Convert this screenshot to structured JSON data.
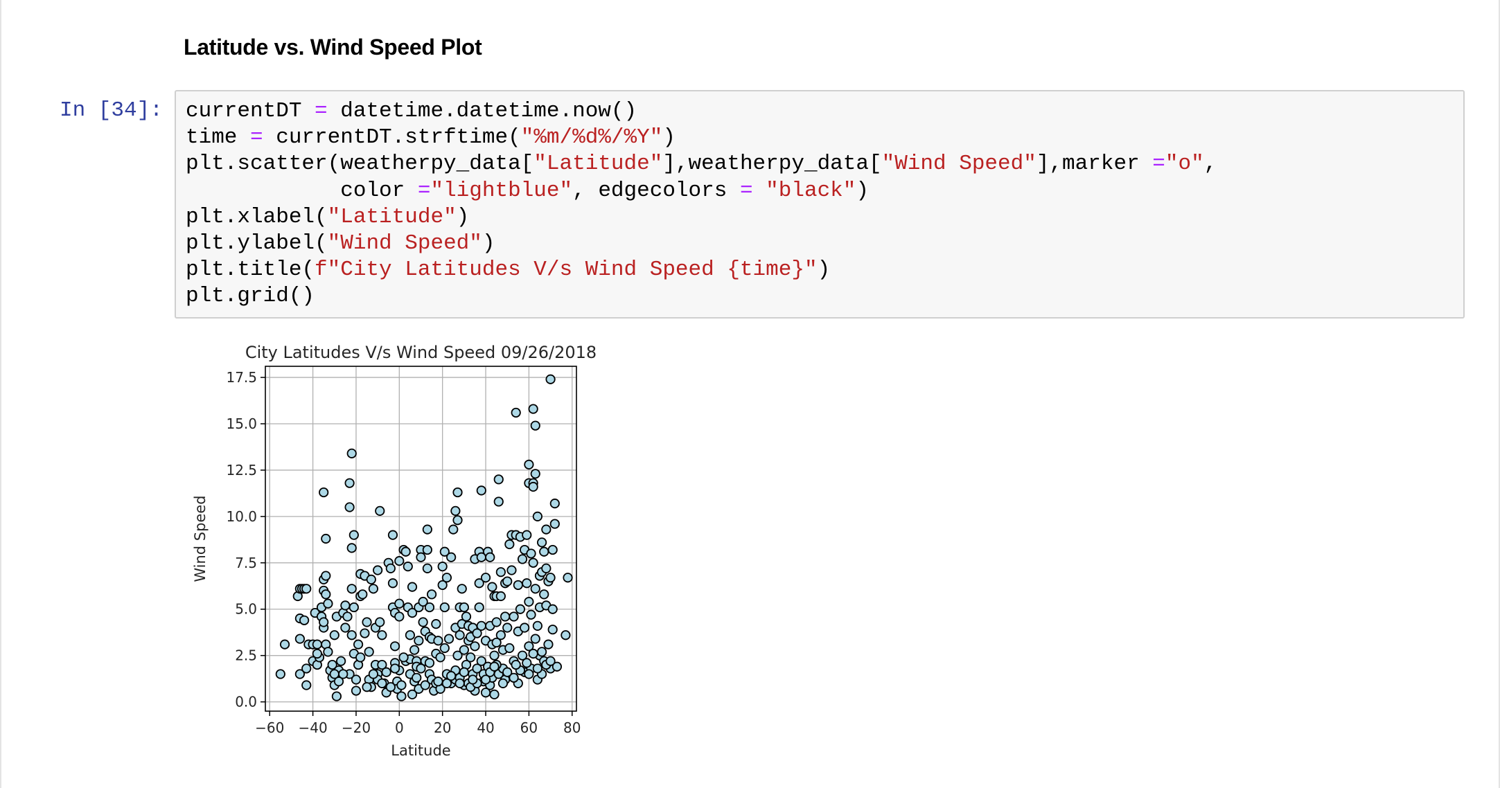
{
  "notebook": {
    "markdown_heading": "Latitude vs. Wind Speed Plot",
    "prompt": "In [34]:",
    "code_lines": [
      [
        {
          "t": "currentDT "
        },
        {
          "t": "=",
          "c": "op"
        },
        {
          "t": " datetime.datetime.now()"
        }
      ],
      [
        {
          "t": "time "
        },
        {
          "t": "=",
          "c": "op"
        },
        {
          "t": " currentDT.strftime("
        },
        {
          "t": "\"%m/%d%/%Y\"",
          "c": "str"
        },
        {
          "t": ")"
        }
      ],
      [
        {
          "t": "plt.scatter(weatherpy_data["
        },
        {
          "t": "\"Latitude\"",
          "c": "str"
        },
        {
          "t": "],weatherpy_data["
        },
        {
          "t": "\"Wind Speed\"",
          "c": "str"
        },
        {
          "t": "],marker "
        },
        {
          "t": "=",
          "c": "op"
        },
        {
          "t": "\"o\"",
          "c": "str"
        },
        {
          "t": ","
        }
      ],
      [
        {
          "t": "            color "
        },
        {
          "t": "=",
          "c": "op"
        },
        {
          "t": "\"lightblue\"",
          "c": "str"
        },
        {
          "t": ", edgecolors "
        },
        {
          "t": "=",
          "c": "op"
        },
        {
          "t": " "
        },
        {
          "t": "\"black\"",
          "c": "str"
        },
        {
          "t": ")"
        }
      ],
      [
        {
          "t": "plt.xlabel("
        },
        {
          "t": "\"Latitude\"",
          "c": "str"
        },
        {
          "t": ")"
        }
      ],
      [
        {
          "t": "plt.ylabel("
        },
        {
          "t": "\"Wind Speed\"",
          "c": "str"
        },
        {
          "t": ")"
        }
      ],
      [
        {
          "t": "plt.title("
        },
        {
          "t": "f\"City Latitudes V/s Wind Speed {time}\"",
          "c": "str"
        },
        {
          "t": ")"
        }
      ],
      [
        {
          "t": "plt.grid()"
        }
      ]
    ],
    "colors": {
      "prompt": "#303f9f",
      "string": "#ba2121",
      "operator": "#aa22ff",
      "cell_bg": "#f7f7f7",
      "cell_border": "#cfcfcf"
    }
  },
  "chart_data": {
    "type": "scatter",
    "title": "City Latitudes V/s Wind Speed 09/26/2018",
    "xlabel": "Latitude",
    "ylabel": "Wind Speed",
    "xlim": [
      -62,
      82
    ],
    "ylim": [
      -0.5,
      18.1
    ],
    "xticks": [
      -60,
      -40,
      -20,
      0,
      20,
      40,
      60,
      80
    ],
    "xtick_labels": [
      "−60",
      "−40",
      "−20",
      "0",
      "20",
      "40",
      "60",
      "80"
    ],
    "yticks": [
      0.0,
      2.5,
      5.0,
      7.5,
      10.0,
      12.5,
      15.0,
      17.5
    ],
    "ytick_labels": [
      "0.0",
      "2.5",
      "5.0",
      "7.5",
      "10.0",
      "12.5",
      "15.0",
      "17.5"
    ],
    "grid": true,
    "marker": "o",
    "marker_face_color": "#add8e6",
    "marker_edge_color": "#000000",
    "points": [
      [
        -55,
        1.5
      ],
      [
        -53,
        3.1
      ],
      [
        -47,
        5.7
      ],
      [
        -46,
        6.1
      ],
      [
        -45,
        6.1
      ],
      [
        -44,
        6.1
      ],
      [
        -43,
        6.1
      ],
      [
        -46,
        4.5
      ],
      [
        -44,
        4.4
      ],
      [
        -46,
        3.4
      ],
      [
        -46,
        1.5
      ],
      [
        -43,
        0.9
      ],
      [
        -43,
        1.8
      ],
      [
        -42,
        3.1
      ],
      [
        -40,
        3.1
      ],
      [
        -40,
        2.2
      ],
      [
        -39,
        4.8
      ],
      [
        -38,
        3.1
      ],
      [
        -38,
        2.0
      ],
      [
        -37,
        2.4
      ],
      [
        -36,
        4.6
      ],
      [
        -36,
        5.1
      ],
      [
        -35,
        6.6
      ],
      [
        -35,
        6.0
      ],
      [
        -34,
        6.8
      ],
      [
        -34,
        5.8
      ],
      [
        -33,
        5.3
      ],
      [
        -35,
        11.3
      ],
      [
        -34,
        8.8
      ],
      [
        -35,
        4.0
      ],
      [
        -35,
        4.3
      ],
      [
        -34,
        3.1
      ],
      [
        -33,
        2.7
      ],
      [
        -32,
        1.7
      ],
      [
        -31,
        1.3
      ],
      [
        -30,
        0.9
      ],
      [
        -29,
        0.3
      ],
      [
        -31,
        2.0
      ],
      [
        -30,
        3.6
      ],
      [
        -29,
        4.6
      ],
      [
        -28,
        1.7
      ],
      [
        -28,
        1.1
      ],
      [
        -27,
        2.2
      ],
      [
        -26,
        4.8
      ],
      [
        -25,
        5.2
      ],
      [
        -25,
        4.0
      ],
      [
        -24,
        4.6
      ],
      [
        -23,
        1.5
      ],
      [
        -23,
        11.8
      ],
      [
        -23,
        10.5
      ],
      [
        -22,
        13.4
      ],
      [
        -22,
        8.3
      ],
      [
        -21,
        9.0
      ],
      [
        -22,
        6.1
      ],
      [
        -21,
        5.1
      ],
      [
        -22,
        3.6
      ],
      [
        -21,
        2.6
      ],
      [
        -20,
        1.2
      ],
      [
        -20,
        0.6
      ],
      [
        -19,
        3.1
      ],
      [
        -19,
        2.0
      ],
      [
        -18,
        5.7
      ],
      [
        -18,
        6.9
      ],
      [
        -17,
        5.8
      ],
      [
        -16,
        6.8
      ],
      [
        -16,
        3.7
      ],
      [
        -15,
        4.3
      ],
      [
        -14,
        2.7
      ],
      [
        -14,
        1.2
      ],
      [
        -13,
        0.8
      ],
      [
        -13,
        6.6
      ],
      [
        -12,
        6.1
      ],
      [
        -11,
        4.0
      ],
      [
        -11,
        2.0
      ],
      [
        -10,
        1.5
      ],
      [
        -10,
        7.1
      ],
      [
        -9,
        10.3
      ],
      [
        -9,
        4.3
      ],
      [
        -8,
        3.6
      ],
      [
        -8,
        2.0
      ],
      [
        -7,
        1.0
      ],
      [
        -6,
        1.6
      ],
      [
        -6,
        0.5
      ],
      [
        -5,
        7.5
      ],
      [
        -4,
        7.2
      ],
      [
        -3,
        9.0
      ],
      [
        -3,
        6.4
      ],
      [
        -3,
        5.1
      ],
      [
        -2,
        4.8
      ],
      [
        -2,
        3.0
      ],
      [
        -2,
        2.1
      ],
      [
        -1,
        1.1
      ],
      [
        -1,
        0.7
      ],
      [
        0,
        7.6
      ],
      [
        0,
        5.3
      ],
      [
        0,
        4.6
      ],
      [
        0,
        1.7
      ],
      [
        1,
        0.9
      ],
      [
        1,
        0.3
      ],
      [
        2,
        8.2
      ],
      [
        3,
        8.1
      ],
      [
        3,
        2.2
      ],
      [
        4,
        7.3
      ],
      [
        4,
        5.1
      ],
      [
        5,
        3.6
      ],
      [
        5,
        2.3
      ],
      [
        5,
        1.5
      ],
      [
        6,
        6.2
      ],
      [
        6,
        4.8
      ],
      [
        7,
        1.1
      ],
      [
        7,
        2.8
      ],
      [
        8,
        2.2
      ],
      [
        8,
        1.9
      ],
      [
        9,
        5.1
      ],
      [
        9,
        3.3
      ],
      [
        9,
        0.7
      ],
      [
        10,
        8.2
      ],
      [
        10,
        7.8
      ],
      [
        11,
        5.4
      ],
      [
        11,
        4.3
      ],
      [
        12,
        3.8
      ],
      [
        12,
        2.2
      ],
      [
        12,
        0.9
      ],
      [
        13,
        9.3
      ],
      [
        13,
        8.2
      ],
      [
        13,
        7.2
      ],
      [
        14,
        5.1
      ],
      [
        14,
        3.5
      ],
      [
        14,
        1.5
      ],
      [
        15,
        5.8
      ],
      [
        15,
        3.4
      ],
      [
        15,
        1.2
      ],
      [
        16,
        0.6
      ],
      [
        17,
        4.2
      ],
      [
        17,
        2.6
      ],
      [
        17,
        1.0
      ],
      [
        18,
        3.3
      ],
      [
        19,
        0.7
      ],
      [
        19,
        2.4
      ],
      [
        20,
        7.3
      ],
      [
        20,
        6.3
      ],
      [
        21,
        8.1
      ],
      [
        21,
        5.1
      ],
      [
        21,
        2.9
      ],
      [
        22,
        6.7
      ],
      [
        22,
        1.5
      ],
      [
        23,
        3.4
      ],
      [
        24,
        7.8
      ],
      [
        24,
        1.0
      ],
      [
        25,
        9.3
      ],
      [
        26,
        10.3
      ],
      [
        26,
        4.0
      ],
      [
        26,
        1.2
      ],
      [
        27,
        9.8
      ],
      [
        27,
        11.3
      ],
      [
        27,
        2.5
      ],
      [
        28,
        5.1
      ],
      [
        28,
        3.6
      ],
      [
        28,
        1.3
      ],
      [
        29,
        6.1
      ],
      [
        29,
        4.2
      ],
      [
        30,
        5.1
      ],
      [
        30,
        2.8
      ],
      [
        30,
        0.9
      ],
      [
        31,
        4.6
      ],
      [
        31,
        2.0
      ],
      [
        32,
        4.1
      ],
      [
        32,
        3.3
      ],
      [
        32,
        1.0
      ],
      [
        33,
        3.5
      ],
      [
        33,
        2.4
      ],
      [
        34,
        4.0
      ],
      [
        34,
        1.5
      ],
      [
        35,
        7.7
      ],
      [
        35,
        3.0
      ],
      [
        35,
        0.6
      ],
      [
        36,
        3.7
      ],
      [
        36,
        1.8
      ],
      [
        37,
        8.1
      ],
      [
        37,
        6.4
      ],
      [
        37,
        5.1
      ],
      [
        38,
        7.8
      ],
      [
        38,
        4.1
      ],
      [
        38,
        11.4
      ],
      [
        38,
        2.2
      ],
      [
        39,
        1.1
      ],
      [
        40,
        6.7
      ],
      [
        40,
        3.3
      ],
      [
        40,
        0.5
      ],
      [
        41,
        8.1
      ],
      [
        41,
        1.9
      ],
      [
        42,
        7.8
      ],
      [
        42,
        4.1
      ],
      [
        42,
        0.9
      ],
      [
        43,
        6.2
      ],
      [
        43,
        3.1
      ],
      [
        43,
        1.3
      ],
      [
        44,
        5.7
      ],
      [
        44,
        2.5
      ],
      [
        44,
        0.4
      ],
      [
        45,
        4.3
      ],
      [
        45,
        5.7
      ],
      [
        45,
        3.2
      ],
      [
        46,
        1.5
      ],
      [
        46,
        12.0
      ],
      [
        46,
        10.8
      ],
      [
        47,
        7.0
      ],
      [
        47,
        5.7
      ],
      [
        47,
        3.6
      ],
      [
        48,
        2.8
      ],
      [
        48,
        1.8
      ],
      [
        49,
        6.4
      ],
      [
        49,
        4.6
      ],
      [
        49,
        1.2
      ],
      [
        50,
        6.5
      ],
      [
        50,
        4.0
      ],
      [
        51,
        8.5
      ],
      [
        51,
        2.9
      ],
      [
        52,
        9.0
      ],
      [
        52,
        7.1
      ],
      [
        53,
        4.6
      ],
      [
        53,
        2.2
      ],
      [
        54,
        15.6
      ],
      [
        54,
        9.0
      ],
      [
        55,
        6.3
      ],
      [
        55,
        3.8
      ],
      [
        55,
        1.0
      ],
      [
        56,
        5.0
      ],
      [
        56,
        8.9
      ],
      [
        57,
        7.7
      ],
      [
        57,
        2.5
      ],
      [
        58,
        8.2
      ],
      [
        58,
        4.0
      ],
      [
        58,
        1.6
      ],
      [
        59,
        9.0
      ],
      [
        59,
        6.4
      ],
      [
        60,
        11.8
      ],
      [
        60,
        12.8
      ],
      [
        60,
        5.4
      ],
      [
        60,
        3.0
      ],
      [
        61,
        8.0
      ],
      [
        61,
        4.7
      ],
      [
        61,
        1.8
      ],
      [
        62,
        15.8
      ],
      [
        62,
        7.5
      ],
      [
        62,
        11.8
      ],
      [
        62,
        11.6
      ],
      [
        63,
        14.9
      ],
      [
        63,
        12.3
      ],
      [
        63,
        6.1
      ],
      [
        63,
        3.4
      ],
      [
        64,
        10.0
      ],
      [
        64,
        4.1
      ],
      [
        64,
        1.2
      ],
      [
        65,
        6.8
      ],
      [
        65,
        5.1
      ],
      [
        65,
        2.5
      ],
      [
        66,
        8.6
      ],
      [
        66,
        7.0
      ],
      [
        66,
        1.5
      ],
      [
        67,
        8.1
      ],
      [
        67,
        5.8
      ],
      [
        67,
        2.2
      ],
      [
        68,
        9.3
      ],
      [
        68,
        7.2
      ],
      [
        68,
        5.2
      ],
      [
        69,
        6.5
      ],
      [
        69,
        3.1
      ],
      [
        70,
        17.4
      ],
      [
        70,
        6.7
      ],
      [
        70,
        1.8
      ],
      [
        71,
        8.2
      ],
      [
        71,
        5.0
      ],
      [
        71,
        3.9
      ],
      [
        72,
        10.7
      ],
      [
        72,
        9.6
      ],
      [
        73,
        1.9
      ],
      [
        77,
        3.6
      ],
      [
        78,
        6.7
      ],
      [
        -10,
        1.2
      ],
      [
        -4,
        0.8
      ],
      [
        2,
        2.4
      ],
      [
        10,
        1.8
      ],
      [
        18,
        1.1
      ],
      [
        26,
        1.7
      ],
      [
        33,
        0.8
      ],
      [
        39,
        1.5
      ],
      [
        45,
        2.0
      ],
      [
        53,
        1.3
      ],
      [
        59,
        2.1
      ],
      [
        64,
        1.8
      ],
      [
        -26,
        1.5
      ],
      [
        -18,
        2.4
      ],
      [
        -8,
        1.0
      ],
      [
        6,
        0.4
      ],
      [
        22,
        1.0
      ],
      [
        30,
        1.6
      ],
      [
        36,
        1.0
      ],
      [
        42,
        1.6
      ],
      [
        48,
        1.0
      ],
      [
        56,
        1.7
      ],
      [
        62,
        2.6
      ],
      [
        68,
        2.0
      ],
      [
        -38,
        2.6
      ],
      [
        -30,
        1.5
      ],
      [
        -12,
        1.5
      ],
      [
        -2,
        1.8
      ],
      [
        14,
        2.1
      ],
      [
        24,
        1.4
      ],
      [
        34,
        1.2
      ],
      [
        44,
        1.9
      ],
      [
        54,
        2.0
      ],
      [
        66,
        2.7
      ],
      [
        -15,
        0.8
      ],
      [
        8,
        1.3
      ],
      [
        28,
        1.0
      ],
      [
        40,
        1.2
      ],
      [
        50,
        1.6
      ],
      [
        60,
        1.5
      ],
      [
        70,
        2.2
      ]
    ]
  }
}
